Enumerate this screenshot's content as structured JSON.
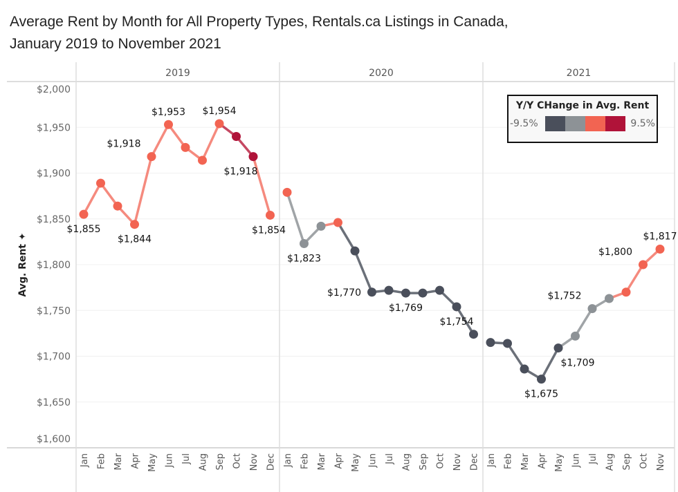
{
  "chart_data": {
    "type": "line",
    "title_line1": "Average Rent by Month for All Property Types, Rentals.ca Listings in Canada,",
    "title_line2": "January 2019 to November 2021",
    "ylabel": "Avg. Rent",
    "ylim": [
      1600,
      2000
    ],
    "yticks": [
      "$1,600",
      "$1,650",
      "$1,700",
      "$1,750",
      "$1,800",
      "$1,850",
      "$1,900",
      "$1,950",
      "$2,000"
    ],
    "ytick_values": [
      1600,
      1650,
      1700,
      1750,
      1800,
      1850,
      1900,
      1950,
      2000
    ],
    "grid": true,
    "months": [
      "Jan",
      "Feb",
      "Mar",
      "Apr",
      "May",
      "Jun",
      "Jul",
      "Aug",
      "Sep",
      "Oct",
      "Nov",
      "Dec"
    ],
    "panels": [
      {
        "year": "2019",
        "values": [
          1855,
          1889,
          1864,
          1844,
          1918,
          1953,
          1928,
          1914,
          1954,
          1940,
          1918,
          1854
        ],
        "color_class": [
          2,
          2,
          2,
          2,
          2,
          2,
          2,
          2,
          2,
          3,
          3,
          2
        ],
        "labels": {
          "0": "$1,855",
          "3": "$1,844",
          "4": "$1,918",
          "5": "$1,953",
          "8": "$1,954",
          "10": "$1,918",
          "11": "$1,854"
        }
      },
      {
        "year": "2020",
        "values": [
          1879,
          1823,
          1842,
          1846,
          1815,
          1770,
          1772,
          1769,
          1769,
          1772,
          1754,
          1724
        ],
        "color_class": [
          2,
          1,
          1,
          2,
          0,
          0,
          0,
          0,
          0,
          0,
          0,
          0
        ],
        "labels": {
          "1": "$1,823",
          "5": "$1,770",
          "7": "$1,769",
          "10": "$1,754"
        }
      },
      {
        "year": "2021",
        "values": [
          1715,
          1714,
          1686,
          1675,
          1709,
          1722,
          1752,
          1763,
          1770,
          1800,
          1817
        ],
        "color_class": [
          0,
          0,
          0,
          0,
          0,
          1,
          1,
          1,
          2,
          2,
          2
        ],
        "labels": {
          "3": "$1,675",
          "4": "$1,709",
          "6": "$1,752",
          "9": "$1,800",
          "10": "$1,817"
        }
      }
    ],
    "legend": {
      "title": "Y/Y CHange in Avg. Rent",
      "min": "-9.5%",
      "max": "9.5%",
      "colors": [
        "#4a4f5b",
        "#8d9296",
        "#f26452",
        "#b01339"
      ],
      "position": "top-right"
    }
  }
}
